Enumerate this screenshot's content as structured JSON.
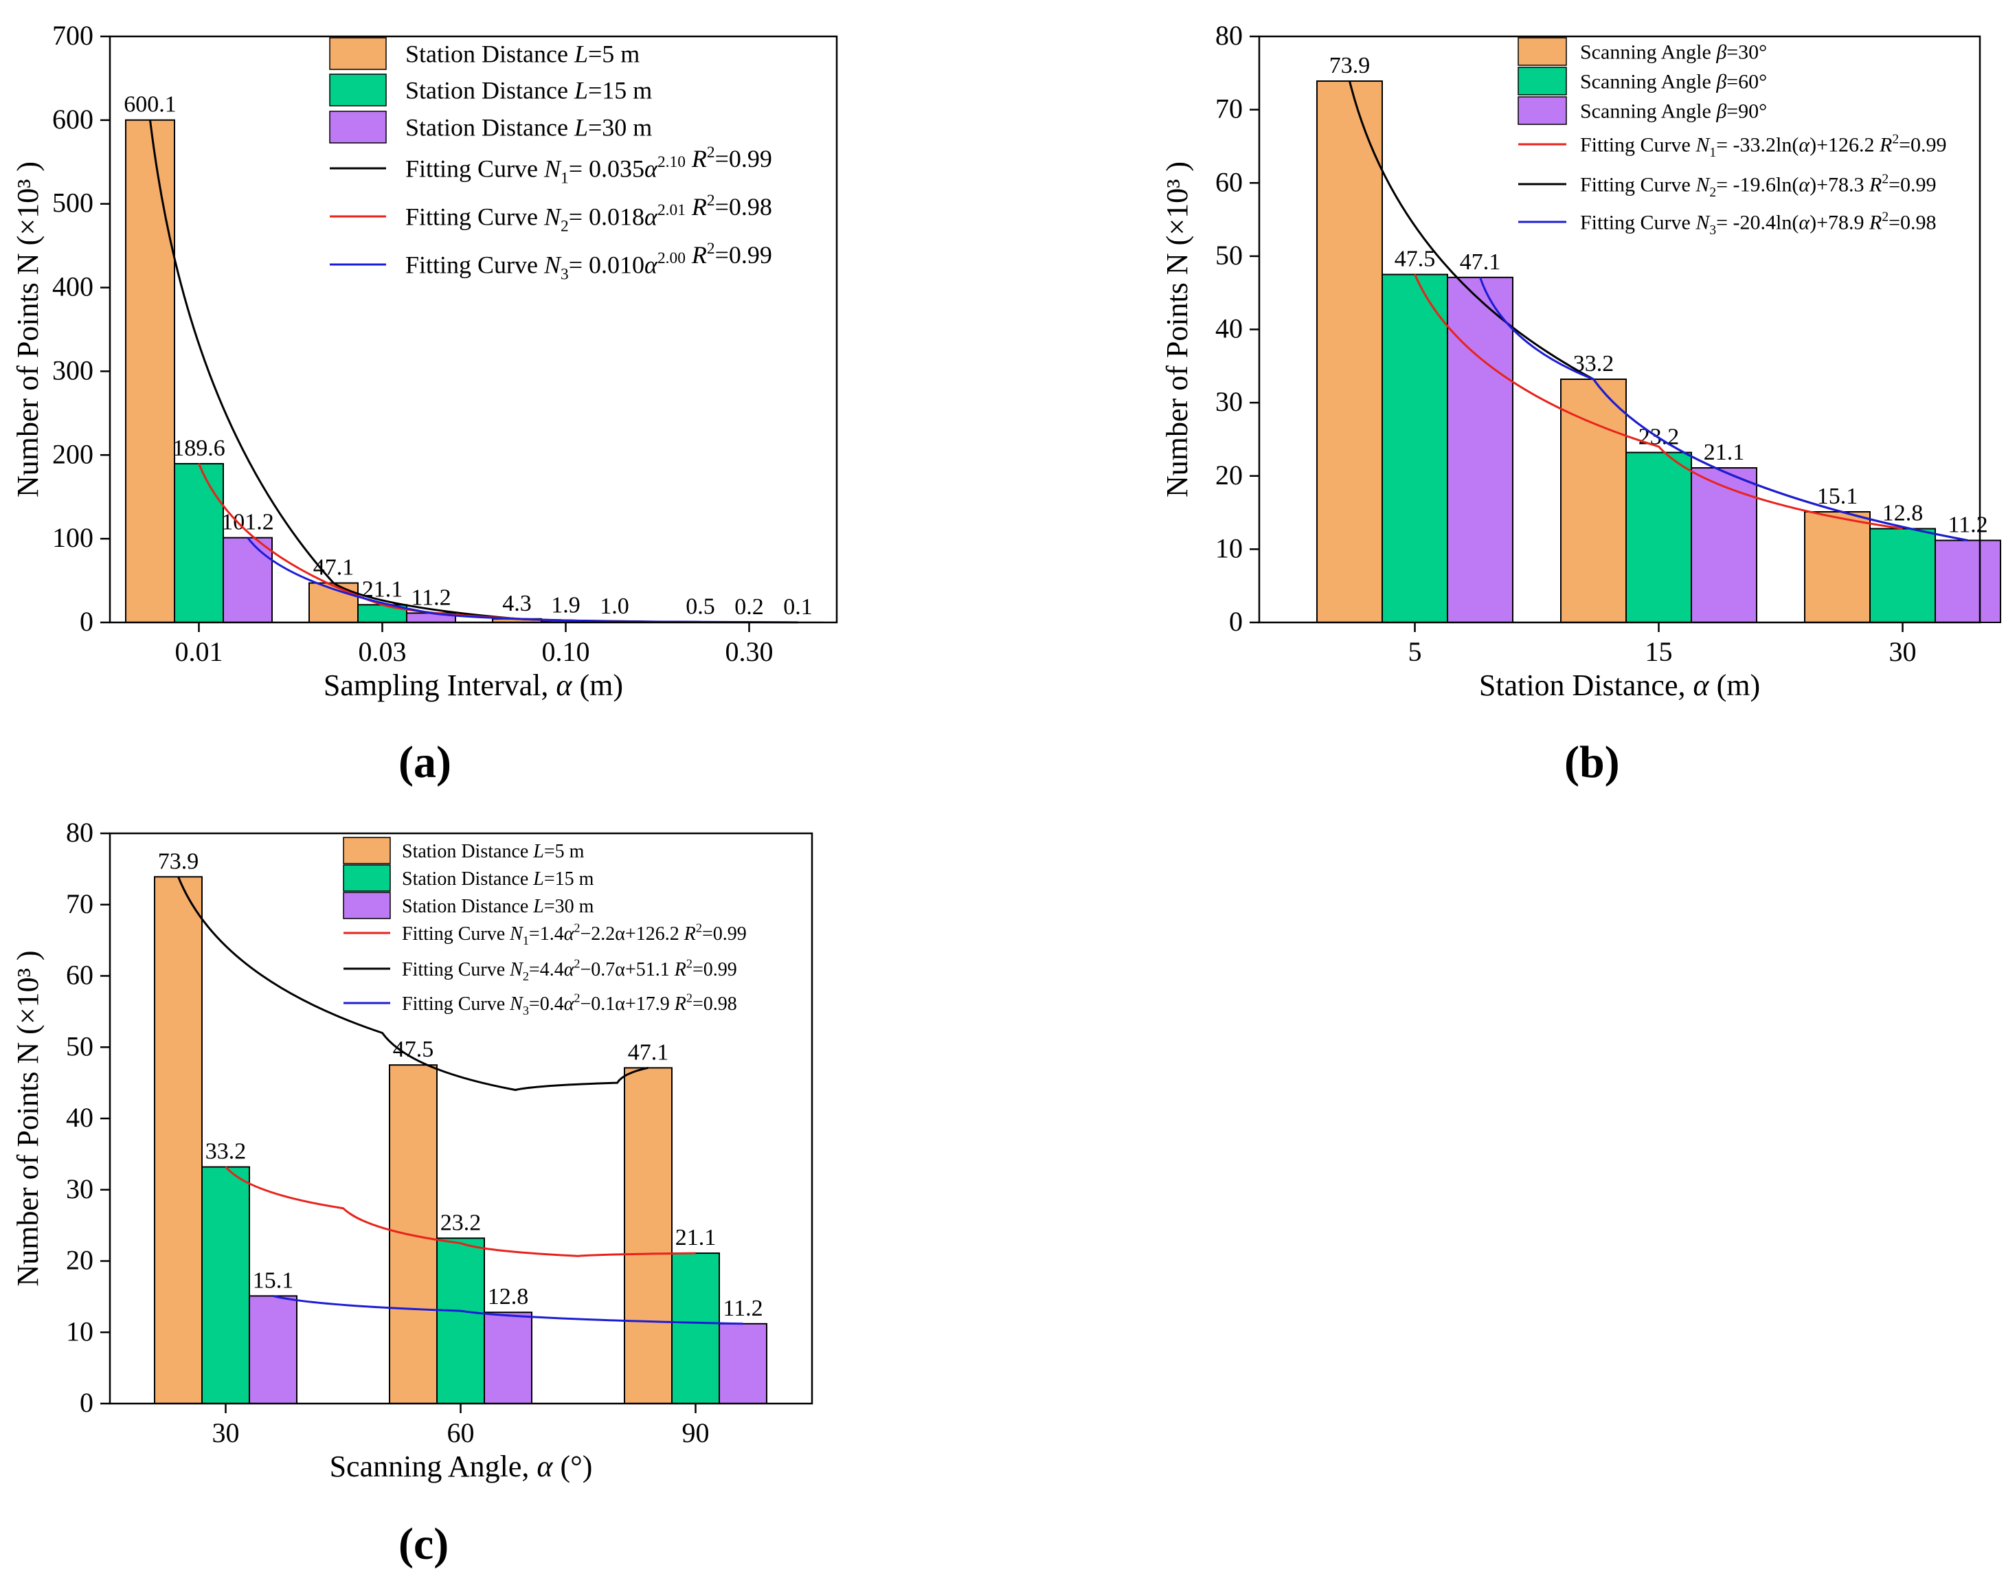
{
  "colors": {
    "orange": "#F5AD6A",
    "green": "#00D089",
    "purple": "#BE7AF5",
    "black": "#000000",
    "red": "#E8221B",
    "blue": "#1C1CD6"
  },
  "panel_labels": {
    "a": "(a)",
    "b": "(b)",
    "c": "(c)"
  },
  "chart_data": [
    {
      "id": "a",
      "type": "bar",
      "ylabel": "Number of Points N (×10³ )",
      "xlabel": "Sampling Interval, α (m)",
      "ylim": [
        0,
        700
      ],
      "yticks": [
        0,
        100,
        200,
        300,
        400,
        500,
        600,
        700
      ],
      "categories": [
        "0.01",
        "0.03",
        "0.10",
        "0.30"
      ],
      "series": [
        {
          "name": "Station Distance L=5 m",
          "color": "orange",
          "values": [
            600.1,
            47.1,
            4.3,
            0.5
          ],
          "labels": [
            "600.1",
            "47.1",
            "4.3",
            "0.5"
          ]
        },
        {
          "name": "Station Distance L=15 m",
          "color": "green",
          "values": [
            189.6,
            21.1,
            1.9,
            0.2
          ],
          "labels": [
            "189.6",
            "21.1",
            "1.9",
            "0.2"
          ]
        },
        {
          "name": "Station Distance L=30 m",
          "color": "purple",
          "values": [
            101.2,
            11.2,
            1.0,
            0.1
          ],
          "labels": [
            "101.2",
            "11.2",
            "1.0",
            "0.1"
          ]
        }
      ],
      "fits": [
        {
          "name": "Fitting Curve N1= 0.035α2.10 R2=0.99",
          "color": "black",
          "points": [
            [
              0.01,
              600.1
            ],
            [
              0.03,
              47.1
            ],
            [
              0.1,
              4.3
            ],
            [
              0.3,
              0.5
            ]
          ]
        },
        {
          "name": "Fitting Curve N2= 0.018α2.01 R2=0.98",
          "color": "red",
          "points": [
            [
              0.01,
              189.6
            ],
            [
              0.03,
              21.1
            ],
            [
              0.1,
              1.9
            ],
            [
              0.3,
              0.2
            ]
          ]
        },
        {
          "name": "Fitting Curve N3= 0.010α2.00 R2=0.99",
          "color": "blue",
          "points": [
            [
              0.01,
              101.2
            ],
            [
              0.03,
              11.2
            ],
            [
              0.1,
              1.0
            ],
            [
              0.3,
              0.1
            ]
          ]
        }
      ],
      "legend": [
        {
          "kind": "box",
          "color": "orange",
          "text": "Station Distance ",
          "ital": "L",
          "after": "=5 m"
        },
        {
          "kind": "box",
          "color": "green",
          "text": "Station Distance ",
          "ital": "L",
          "after": "=15 m"
        },
        {
          "kind": "box",
          "color": "purple",
          "text": "Station Distance ",
          "ital": "L",
          "after": "=30 m"
        },
        {
          "kind": "line",
          "color": "black",
          "text": "Fitting Curve  ",
          "ital": "N",
          "sub": "1",
          "mid": "= 0.035",
          "alpha": "α",
          "sup": "2.10",
          "r2": "=0.99"
        },
        {
          "kind": "line",
          "color": "red",
          "text": "Fitting Curve  ",
          "ital": "N",
          "sub": "2",
          "mid": "= 0.018",
          "alpha": "α",
          "sup": "2.01",
          "r2": "=0.98"
        },
        {
          "kind": "line",
          "color": "blue",
          "text": "Fitting Curve  ",
          "ital": "N",
          "sub": "3",
          "mid": "= 0.010",
          "alpha": "α",
          "sup": "2.00",
          "r2": "=0.99"
        }
      ]
    },
    {
      "id": "b",
      "type": "bar",
      "ylabel": "Number of Points N (×10³ )",
      "xlabel": "Station Distance, α (m)",
      "ylim": [
        0,
        80
      ],
      "yticks": [
        0,
        10,
        20,
        30,
        40,
        50,
        60,
        70,
        80
      ],
      "categories": [
        "5",
        "15",
        "30"
      ],
      "series": [
        {
          "name": "Scanning Angle β=30°",
          "color": "orange",
          "values": [
            73.9,
            33.2,
            15.1
          ],
          "labels": [
            "73.9",
            "33.2",
            "15.1"
          ]
        },
        {
          "name": "Scanning Angle β=60°",
          "color": "green",
          "values": [
            47.5,
            23.2,
            12.8
          ],
          "labels": [
            "47.5",
            "23.2",
            "12.8"
          ]
        },
        {
          "name": "Scanning Angle β=90°",
          "color": "purple",
          "values": [
            47.1,
            21.1,
            11.2
          ],
          "labels": [
            "47.1",
            "21.1",
            "11.2"
          ]
        }
      ],
      "fits": [
        {
          "name": "Fitting Curve N1= -33.2ln(α)+126.2 R2=0.99",
          "color": "red",
          "points": [
            [
              5,
              47.5
            ],
            [
              15,
              24.0
            ],
            [
              30,
              12.8
            ]
          ]
        },
        {
          "name": "Fitting Curve N2= -19.6ln(α)+78.3 R2=0.99",
          "color": "black",
          "points": [
            [
              5,
              73.9
            ],
            [
              15,
              33.2
            ],
            [
              30,
              11.2
            ]
          ]
        },
        {
          "name": "Fitting Curve N3= -20.4ln(α)+78.9 R2=0.98",
          "color": "blue",
          "points": [
            [
              5,
              47.1
            ],
            [
              15,
              33.2
            ],
            [
              30,
              11.2
            ]
          ]
        }
      ],
      "legend": [
        {
          "kind": "box",
          "color": "orange",
          "text": "Scanning Angle ",
          "ital": "β",
          "after": "=30°"
        },
        {
          "kind": "box",
          "color": "green",
          "text": "Scanning Angle ",
          "ital": "β",
          "after": "=60°"
        },
        {
          "kind": "box",
          "color": "purple",
          "text": "Scanning Angle ",
          "ital": "β",
          "after": "=90°"
        },
        {
          "kind": "line",
          "color": "red",
          "text": "Fitting Curve  ",
          "ital": "N",
          "sub": "1",
          "mid": "= -33.2ln(",
          "alpha": "α",
          "post": ")+126.2",
          "r2": "=0.99"
        },
        {
          "kind": "line",
          "color": "black",
          "text": "Fitting Curve  ",
          "ital": "N",
          "sub": "2",
          "mid": "= -19.6ln(",
          "alpha": "α",
          "post": ")+78.3",
          "r2": "=0.99"
        },
        {
          "kind": "line",
          "color": "blue",
          "text": "Fitting Curve  ",
          "ital": "N",
          "sub": "3",
          "mid": "= -20.4ln(",
          "alpha": "α",
          "post": ")+78.9",
          "r2": "=0.98"
        }
      ]
    },
    {
      "id": "c",
      "type": "bar",
      "ylabel": "Number of Points N (×10³ )",
      "xlabel": "Scanning Angle, α (°)",
      "ylim": [
        0,
        80
      ],
      "yticks": [
        0,
        10,
        20,
        30,
        40,
        50,
        60,
        70,
        80
      ],
      "categories": [
        "30",
        "60",
        "90"
      ],
      "series": [
        {
          "name": "Station Distance L=5 m",
          "color": "orange",
          "values": [
            73.9,
            47.5,
            47.1
          ],
          "labels": [
            "73.9",
            "47.5",
            "47.1"
          ]
        },
        {
          "name": "Station Distance L=15 m",
          "color": "green",
          "values": [
            33.2,
            23.2,
            21.1
          ],
          "labels": [
            "33.2",
            "23.2",
            "21.1"
          ]
        },
        {
          "name": "Station Distance L=30 m",
          "color": "purple",
          "values": [
            15.1,
            12.8,
            11.2
          ],
          "labels": [
            "15.1",
            "12.8",
            "11.2"
          ]
        }
      ],
      "fits": [
        {
          "name": "Fitting Curve N1=1.4α2−2.2α+126.2 R2=0.99",
          "color": "red",
          "points": [
            [
              30,
              33.2
            ],
            [
              45,
              27.4
            ],
            [
              60,
              22.5
            ],
            [
              75,
              20.7
            ],
            [
              90,
              21.1
            ]
          ]
        },
        {
          "name": "Fitting Curve N2=4.4α2−0.7α+51.1 R2=0.99",
          "color": "black",
          "points": [
            [
              30,
              73.9
            ],
            [
              50,
              52.0
            ],
            [
              67,
              44.0
            ],
            [
              80,
              45.0
            ],
            [
              90,
              47.1
            ]
          ]
        },
        {
          "name": "Fitting Curve N3=0.4α2−0.1α+17.9 R2=0.98",
          "color": "blue",
          "points": [
            [
              30,
              15.1
            ],
            [
              60,
              13.0
            ],
            [
              90,
              11.2
            ]
          ]
        }
      ],
      "legend": [
        {
          "kind": "box",
          "color": "orange",
          "text": "Station Distance ",
          "ital": "L",
          "after": "=5 m"
        },
        {
          "kind": "box",
          "color": "green",
          "text": "Station Distance ",
          "ital": "L",
          "after": "=15 m"
        },
        {
          "kind": "box",
          "color": "purple",
          "text": "Station Distance ",
          "ital": "L",
          "after": "=30 m"
        },
        {
          "kind": "line",
          "color": "red",
          "text": "Fitting Curve   ",
          "ital": "N",
          "sub": "1",
          "mid": "=1.4",
          "alpha": "α",
          "sup": "2",
          "post": "−2.2α+126.2",
          "r2": "=0.99"
        },
        {
          "kind": "line",
          "color": "black",
          "text": "Fitting Curve   ",
          "ital": "N",
          "sub": "2",
          "mid": "=4.4",
          "alpha": "α",
          "sup": "2",
          "post": "−0.7α+51.1",
          "r2": "=0.99"
        },
        {
          "kind": "line",
          "color": "blue",
          "text": "Fitting Curve   ",
          "ital": "N",
          "sub": "3",
          "mid": "=0.4",
          "alpha": "α",
          "sup": "2",
          "post": "−0.1α+17.9",
          "r2": "=0.98"
        }
      ]
    }
  ]
}
